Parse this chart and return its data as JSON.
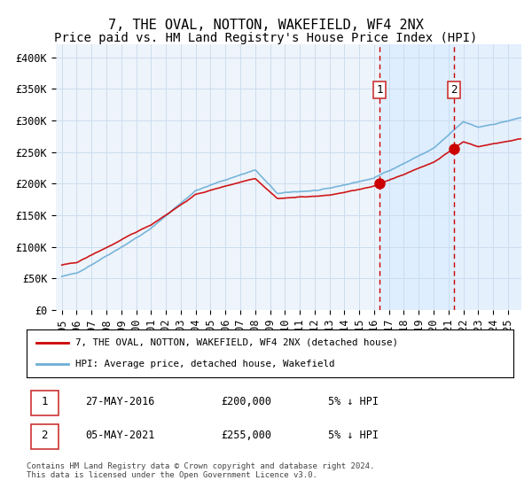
{
  "title": "7, THE OVAL, NOTTON, WAKEFIELD, WF4 2NX",
  "subtitle": "Price paid vs. HM Land Registry's House Price Index (HPI)",
  "ylim": [
    0,
    420000
  ],
  "yticks": [
    0,
    50000,
    100000,
    150000,
    200000,
    250000,
    300000,
    350000,
    400000
  ],
  "ytick_labels": [
    "£0",
    "£50K",
    "£100K",
    "£150K",
    "£200K",
    "£250K",
    "£300K",
    "£350K",
    "£400K"
  ],
  "sale1_date": "27-MAY-2016",
  "sale1_price": 200000,
  "sale1_year": 2016.38,
  "sale2_date": "05-MAY-2021",
  "sale2_price": 255000,
  "sale2_year": 2021.35,
  "sale1_pct": "5%",
  "sale2_pct": "5%",
  "legend_line1": "7, THE OVAL, NOTTON, WAKEFIELD, WF4 2NX (detached house)",
  "legend_line2": "HPI: Average price, detached house, Wakefield",
  "hpi_color": "#6baed6",
  "price_color": "#cc0000",
  "dot_color": "#cc0000",
  "shading_color": "#ddeeff",
  "vline_color": "#cc0000",
  "grid_color": "#ccddee",
  "bg_color": "#eef4fb",
  "footnote": "Contains HM Land Registry data © Crown copyright and database right 2024.\nThis data is licensed under the Open Government Licence v3.0.",
  "title_fontsize": 11,
  "subtitle_fontsize": 10,
  "tick_fontsize": 8.5,
  "start_year": 1995,
  "end_year": 2026,
  "n_per_year": 12
}
